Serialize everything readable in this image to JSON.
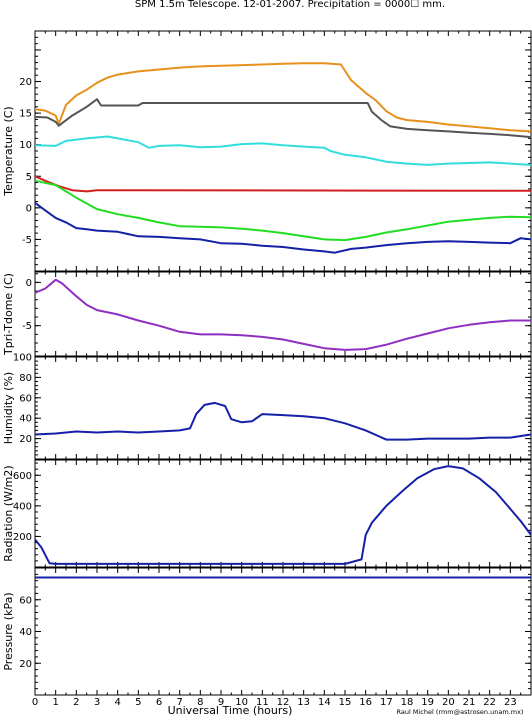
{
  "title": "SPM 1.5m Telescope. 12-01-2007. Precipitation = 0000☐ mm.",
  "credit": "Raul Michel (rmm@astrosen.unam.mx)",
  "chart_data": [
    {
      "type": "line",
      "ylabel": "Temperature (C)",
      "ylim": [
        -10,
        28
      ],
      "yticks": [
        -10,
        -5,
        0,
        5,
        10,
        15,
        20,
        25
      ],
      "yticklabels": [
        "",
        "-5",
        "0",
        "5",
        "10",
        "15",
        "20",
        ""
      ],
      "series": [
        {
          "color": "#e8901c",
          "points": [
            [
              0,
              15.6
            ],
            [
              0.5,
              15.4
            ],
            [
              1.0,
              14.6
            ],
            [
              1.15,
              13.3
            ],
            [
              1.5,
              16.3
            ],
            [
              2,
              17.8
            ],
            [
              2.5,
              18.7
            ],
            [
              3,
              19.8
            ],
            [
              3.5,
              20.6
            ],
            [
              4,
              21.1
            ],
            [
              5,
              21.6
            ],
            [
              6,
              21.9
            ],
            [
              7,
              22.2
            ],
            [
              8,
              22.4
            ],
            [
              9,
              22.5
            ],
            [
              10,
              22.6
            ],
            [
              11,
              22.7
            ],
            [
              12,
              22.8
            ],
            [
              13,
              22.9
            ],
            [
              14,
              22.9
            ],
            [
              14.8,
              22.7
            ],
            [
              15.3,
              20.2
            ],
            [
              16,
              18.2
            ],
            [
              16.5,
              17.0
            ],
            [
              17,
              15.3
            ],
            [
              17.5,
              14.3
            ],
            [
              18,
              13.9
            ],
            [
              19,
              13.6
            ],
            [
              20,
              13.2
            ],
            [
              21,
              12.9
            ],
            [
              22,
              12.6
            ],
            [
              23,
              12.3
            ],
            [
              24,
              12.1
            ]
          ]
        },
        {
          "color": "#555555",
          "points": [
            [
              0,
              14.4
            ],
            [
              0.6,
              14.3
            ],
            [
              1.0,
              13.6
            ],
            [
              1.15,
              13.0
            ],
            [
              1.8,
              14.6
            ],
            [
              2.5,
              16.0
            ],
            [
              3,
              17.2
            ],
            [
              3.2,
              16.2
            ],
            [
              5,
              16.2
            ],
            [
              5.2,
              16.6
            ],
            [
              16.1,
              16.6
            ],
            [
              16.3,
              15.2
            ],
            [
              16.8,
              13.8
            ],
            [
              17.2,
              12.9
            ],
            [
              18,
              12.5
            ],
            [
              19,
              12.3
            ],
            [
              20,
              12.1
            ],
            [
              21,
              11.9
            ],
            [
              22,
              11.7
            ],
            [
              23,
              11.5
            ],
            [
              24,
              11.2
            ]
          ]
        },
        {
          "color": "#33dddd",
          "points": [
            [
              0,
              9.9
            ],
            [
              1,
              9.8
            ],
            [
              1.5,
              10.6
            ],
            [
              2.5,
              11.0
            ],
            [
              3.5,
              11.3
            ],
            [
              4.5,
              10.7
            ],
            [
              5,
              10.4
            ],
            [
              5.5,
              9.5
            ],
            [
              6,
              9.8
            ],
            [
              7,
              9.9
            ],
            [
              8,
              9.6
            ],
            [
              9,
              9.7
            ],
            [
              10,
              10.1
            ],
            [
              11,
              10.2
            ],
            [
              12,
              9.9
            ],
            [
              13,
              9.7
            ],
            [
              14,
              9.5
            ],
            [
              14.3,
              9.0
            ],
            [
              15,
              8.4
            ],
            [
              16,
              8.0
            ],
            [
              17,
              7.3
            ],
            [
              18,
              7.0
            ],
            [
              19,
              6.8
            ],
            [
              20,
              7.0
            ],
            [
              21,
              7.1
            ],
            [
              22,
              7.2
            ],
            [
              23,
              7.0
            ],
            [
              24,
              6.8
            ]
          ]
        },
        {
          "color": "#d02020",
          "points": [
            [
              0,
              5.0
            ],
            [
              0.7,
              4.0
            ],
            [
              1.2,
              3.4
            ],
            [
              1.8,
              2.8
            ],
            [
              2.5,
              2.6
            ],
            [
              3,
              2.8
            ],
            [
              24,
              2.7
            ]
          ]
        },
        {
          "color": "#22dd22",
          "points": [
            [
              0,
              4.3
            ],
            [
              1,
              3.6
            ],
            [
              2,
              1.6
            ],
            [
              3,
              -0.2
            ],
            [
              4,
              -1.0
            ],
            [
              5,
              -1.6
            ],
            [
              6,
              -2.3
            ],
            [
              7,
              -2.9
            ],
            [
              8,
              -3.0
            ],
            [
              9,
              -3.1
            ],
            [
              10,
              -3.3
            ],
            [
              11,
              -3.6
            ],
            [
              12,
              -4.0
            ],
            [
              13,
              -4.5
            ],
            [
              14,
              -5.0
            ],
            [
              15,
              -5.1
            ],
            [
              16,
              -4.6
            ],
            [
              17,
              -3.9
            ],
            [
              18,
              -3.4
            ],
            [
              19,
              -2.8
            ],
            [
              20,
              -2.2
            ],
            [
              21,
              -1.9
            ],
            [
              22,
              -1.6
            ],
            [
              23,
              -1.4
            ],
            [
              24,
              -1.5
            ]
          ]
        },
        {
          "color": "#1520a8",
          "points": [
            [
              0,
              0.8
            ],
            [
              0.5,
              -0.4
            ],
            [
              1,
              -1.6
            ],
            [
              1.5,
              -2.3
            ],
            [
              2,
              -3.2
            ],
            [
              2.5,
              -3.4
            ],
            [
              3,
              -3.6
            ],
            [
              4,
              -3.8
            ],
            [
              5,
              -4.5
            ],
            [
              6,
              -4.6
            ],
            [
              7,
              -4.8
            ],
            [
              8,
              -5.0
            ],
            [
              9,
              -5.6
            ],
            [
              10,
              -5.7
            ],
            [
              11,
              -6.0
            ],
            [
              12,
              -6.2
            ],
            [
              13,
              -6.6
            ],
            [
              14,
              -6.9
            ],
            [
              14.5,
              -7.1
            ],
            [
              15.3,
              -6.5
            ],
            [
              16,
              -6.3
            ],
            [
              17,
              -5.9
            ],
            [
              18,
              -5.6
            ],
            [
              19,
              -5.4
            ],
            [
              20,
              -5.3
            ],
            [
              21,
              -5.4
            ],
            [
              22,
              -5.5
            ],
            [
              23,
              -5.6
            ],
            [
              23.5,
              -4.8
            ],
            [
              24,
              -5.0
            ]
          ]
        }
      ]
    },
    {
      "type": "line",
      "ylabel": "Tpri-Tdome (C)",
      "ylim": [
        -8.5,
        1.2
      ],
      "yticks": [
        -5,
        0
      ],
      "yticklabels": [
        "-5",
        "0"
      ],
      "series": [
        {
          "color": "#8f2fc0",
          "points": [
            [
              0,
              -1.2
            ],
            [
              0.5,
              -0.7
            ],
            [
              1,
              0.3
            ],
            [
              1.3,
              -0.1
            ],
            [
              2,
              -1.6
            ],
            [
              2.5,
              -2.6
            ],
            [
              3,
              -3.2
            ],
            [
              4,
              -3.7
            ],
            [
              5,
              -4.4
            ],
            [
              6,
              -5.0
            ],
            [
              7,
              -5.7
            ],
            [
              8,
              -6.0
            ],
            [
              9,
              -6.0
            ],
            [
              10,
              -6.1
            ],
            [
              11,
              -6.3
            ],
            [
              12,
              -6.6
            ],
            [
              13,
              -7.1
            ],
            [
              14,
              -7.6
            ],
            [
              15,
              -7.8
            ],
            [
              16,
              -7.7
            ],
            [
              17,
              -7.2
            ],
            [
              18,
              -6.5
            ],
            [
              19,
              -5.9
            ],
            [
              20,
              -5.3
            ],
            [
              21,
              -4.9
            ],
            [
              22,
              -4.6
            ],
            [
              23,
              -4.4
            ],
            [
              24,
              -4.4
            ]
          ]
        }
      ]
    },
    {
      "type": "line",
      "ylabel": "Humidity (%)",
      "ylim": [
        0,
        100
      ],
      "yticks": [
        0,
        20,
        40,
        60,
        80,
        100
      ],
      "yticklabels": [
        "",
        "20",
        "40",
        "60",
        "80",
        "100"
      ],
      "series": [
        {
          "color": "#1520a8",
          "points": [
            [
              0,
              24
            ],
            [
              1,
              25
            ],
            [
              2,
              27
            ],
            [
              3,
              26
            ],
            [
              4,
              27
            ],
            [
              5,
              26
            ],
            [
              6,
              27
            ],
            [
              7,
              28
            ],
            [
              7.5,
              30
            ],
            [
              7.8,
              44
            ],
            [
              8.2,
              53
            ],
            [
              8.7,
              55
            ],
            [
              9.2,
              52
            ],
            [
              9.5,
              39
            ],
            [
              10,
              36
            ],
            [
              10.5,
              37
            ],
            [
              11,
              44
            ],
            [
              12,
              43
            ],
            [
              13,
              42
            ],
            [
              14,
              40
            ],
            [
              15,
              35
            ],
            [
              16,
              28
            ],
            [
              17,
              19
            ],
            [
              18,
              19
            ],
            [
              19,
              20
            ],
            [
              20,
              20
            ],
            [
              21,
              20
            ],
            [
              22,
              21
            ],
            [
              23,
              21
            ],
            [
              24,
              24
            ]
          ]
        }
      ]
    },
    {
      "type": "line",
      "ylabel": "Radiation (W/m2)",
      "ylim": [
        0,
        700
      ],
      "yticks": [
        0,
        200,
        400,
        600
      ],
      "yticklabels": [
        "",
        "200",
        "400",
        "600"
      ],
      "series": [
        {
          "color": "#1520a8",
          "points": [
            [
              0,
              180
            ],
            [
              0.3,
              130
            ],
            [
              0.7,
              25
            ],
            [
              1,
              20
            ],
            [
              4,
              20
            ],
            [
              8,
              20
            ],
            [
              12,
              20
            ],
            [
              15,
              20
            ],
            [
              15.8,
              50
            ],
            [
              16,
              210
            ],
            [
              16.3,
              290
            ],
            [
              17,
              400
            ],
            [
              17.8,
              500
            ],
            [
              18.5,
              580
            ],
            [
              19.3,
              640
            ],
            [
              20,
              660
            ],
            [
              20.7,
              645
            ],
            [
              21.5,
              580
            ],
            [
              22.3,
              490
            ],
            [
              23,
              380
            ],
            [
              23.5,
              300
            ],
            [
              24,
              210
            ]
          ]
        }
      ]
    },
    {
      "type": "line",
      "ylabel": "Pressure (kPa)",
      "ylim": [
        0,
        80
      ],
      "yticks": [
        20,
        40,
        60
      ],
      "yticklabels": [
        "20",
        "40",
        "60"
      ],
      "series": [
        {
          "color": "#1520a8",
          "points": [
            [
              0,
              74
            ],
            [
              24,
              74
            ]
          ]
        }
      ]
    }
  ],
  "xaxis": {
    "label": "Universal Time (hours)",
    "xlim": [
      0,
      24
    ],
    "ticks": [
      "0",
      "1",
      "2",
      "3",
      "4",
      "5",
      "6",
      "7",
      "8",
      "9",
      "10",
      "11",
      "12",
      "13",
      "14",
      "15",
      "16",
      "17",
      "18",
      "19",
      "20",
      "21",
      "22",
      "23"
    ]
  }
}
